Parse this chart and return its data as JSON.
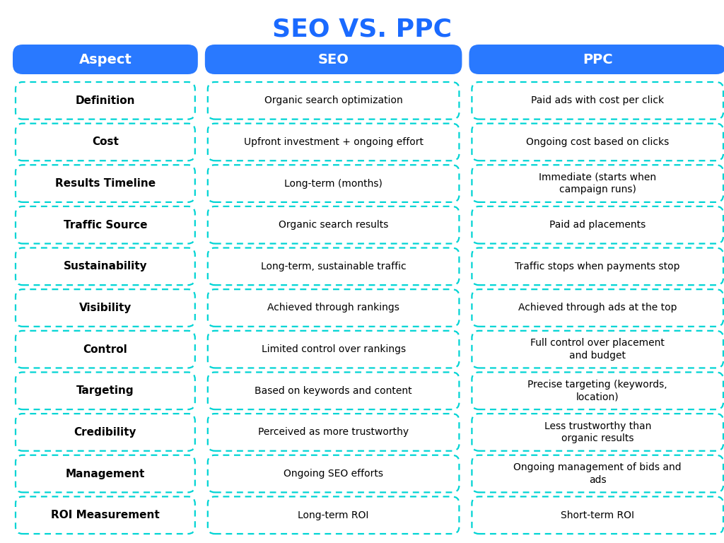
{
  "title": "SEO VS. PPC",
  "title_color": "#1a6aff",
  "title_fontsize": 26,
  "header_bg_color": "#2979ff",
  "header_text_color": "#ffffff",
  "header_fontsize": 14,
  "headers": [
    "Aspect",
    "SEO",
    "PPC"
  ],
  "cell_bg_color": "#ffffff",
  "cell_border_color": "#00d4d4",
  "cell_text_color": "#000000",
  "aspect_fontsize": 11,
  "cell_fontsize": 10,
  "rows": [
    {
      "aspect": "Definition",
      "seo": "Organic search optimization",
      "ppc": "Paid ads with cost per click"
    },
    {
      "aspect": "Cost",
      "seo": "Upfront investment + ongoing effort",
      "ppc": "Ongoing cost based on clicks"
    },
    {
      "aspect": "Results Timeline",
      "seo": "Long-term (months)",
      "ppc": "Immediate (starts when\ncampaign runs)"
    },
    {
      "aspect": "Traffic Source",
      "seo": "Organic search results",
      "ppc": "Paid ad placements"
    },
    {
      "aspect": "Sustainability",
      "seo": "Long-term, sustainable traffic",
      "ppc": "Traffic stops when payments stop"
    },
    {
      "aspect": "Visibility",
      "seo": "Achieved through rankings",
      "ppc": "Achieved through ads at the top"
    },
    {
      "aspect": "Control",
      "seo": "Limited control over rankings",
      "ppc": "Full control over placement\nand budget"
    },
    {
      "aspect": "Targeting",
      "seo": "Based on keywords and content",
      "ppc": "Precise targeting (keywords,\nlocation)"
    },
    {
      "aspect": "Credibility",
      "seo": "Perceived as more trustworthy",
      "ppc": "Less trustworthy than\norganic results"
    },
    {
      "aspect": "Management",
      "seo": "Ongoing SEO efforts",
      "ppc": "Ongoing management of bids and\nads"
    },
    {
      "aspect": "ROI Measurement",
      "seo": "Long-term ROI",
      "ppc": "Short-term ROI"
    }
  ],
  "bg_color": "#ffffff",
  "figsize": [
    10.24,
    7.68
  ],
  "dpi": 100
}
